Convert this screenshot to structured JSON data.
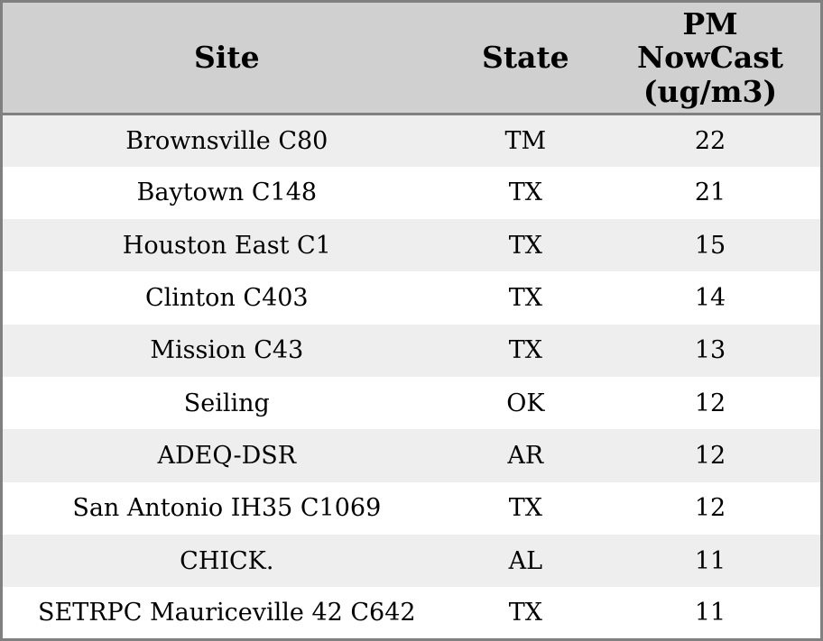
{
  "chart_data": {
    "type": "table",
    "columns": [
      {
        "key": "site",
        "label": "Site"
      },
      {
        "key": "state",
        "label": "State"
      },
      {
        "key": "pm_nowcast",
        "label": "PM NowCast (ug/m3)"
      }
    ],
    "rows": [
      {
        "site": "Brownsville C80",
        "state": "TM",
        "pm_nowcast": "22"
      },
      {
        "site": "Baytown C148",
        "state": "TX",
        "pm_nowcast": "21"
      },
      {
        "site": "Houston East C1",
        "state": "TX",
        "pm_nowcast": "15"
      },
      {
        "site": "Clinton C403",
        "state": "TX",
        "pm_nowcast": "14"
      },
      {
        "site": "Mission C43",
        "state": "TX",
        "pm_nowcast": "13"
      },
      {
        "site": "Seiling",
        "state": "OK",
        "pm_nowcast": "12"
      },
      {
        "site": "ADEQ-DSR",
        "state": "AR",
        "pm_nowcast": "12"
      },
      {
        "site": "San Antonio IH35 C1069",
        "state": "TX",
        "pm_nowcast": "12"
      },
      {
        "site": "CHICK.",
        "state": "AL",
        "pm_nowcast": "11"
      },
      {
        "site": "SETRPC Mauriceville 42 C642",
        "state": "TX",
        "pm_nowcast": "11"
      }
    ]
  },
  "colors": {
    "border": "#808080",
    "header_bg": "#d0d0d0",
    "row_alt_bg": "#eeeeee",
    "row_bg": "#ffffff",
    "text": "#000000"
  }
}
